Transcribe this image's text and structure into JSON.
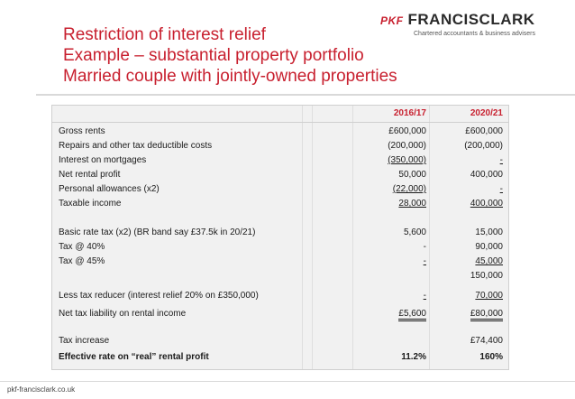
{
  "title": {
    "line1": "Restriction of interest relief",
    "line2": "Example – substantial property portfolio",
    "line3": "Married couple with jointly-owned properties"
  },
  "logo": {
    "pkf": "PKF",
    "name": "FRANCISCLARK",
    "tagline": "Chartered accountants & business advisers"
  },
  "table": {
    "col1": "2016/17",
    "col2": "2020/21",
    "rows": [
      {
        "label": "Gross rents",
        "v1": "£600,000",
        "v2": "£600,000"
      },
      {
        "label": "Repairs and other tax deductible costs",
        "v1": "(200,000)",
        "v2": "(200,000)"
      },
      {
        "label": "Interest on mortgages",
        "v1": "(350,000)",
        "v2": "-"
      },
      {
        "label": "Net rental profit",
        "v1": "50,000",
        "v2": "400,000"
      },
      {
        "label": "Personal allowances (x2)",
        "v1": "(22,000)",
        "v2": "-"
      },
      {
        "label": "Taxable income",
        "v1": "28,000",
        "v2": "400,000"
      },
      {
        "label": "Basic rate tax (x2) (BR band say £37.5k in 20/21)",
        "v1": "5,600",
        "v2": "15,000"
      },
      {
        "label": "Tax @ 40%",
        "v1": "-",
        "v2": "90,000"
      },
      {
        "label": "Tax @ 45%",
        "v1": "-",
        "v2": "45,000"
      },
      {
        "label": "",
        "v1": "",
        "v2": "150,000"
      },
      {
        "label": "Less tax reducer (interest relief 20% on £350,000)",
        "v1": "-",
        "v2": "70,000"
      },
      {
        "label": "Net tax liability on rental income",
        "v1": "£5,600",
        "v2": "£80,000"
      },
      {
        "label": "Tax increase",
        "v1": "",
        "v2": "£74,400"
      },
      {
        "label": "Effective rate on “real” rental profit",
        "v1": "11.2%",
        "v2": "160%"
      }
    ]
  },
  "footer": "pkf-francisclark.co.uk",
  "colors": {
    "accent": "#c8202f",
    "sheet_bg": "#f1f1f1"
  }
}
